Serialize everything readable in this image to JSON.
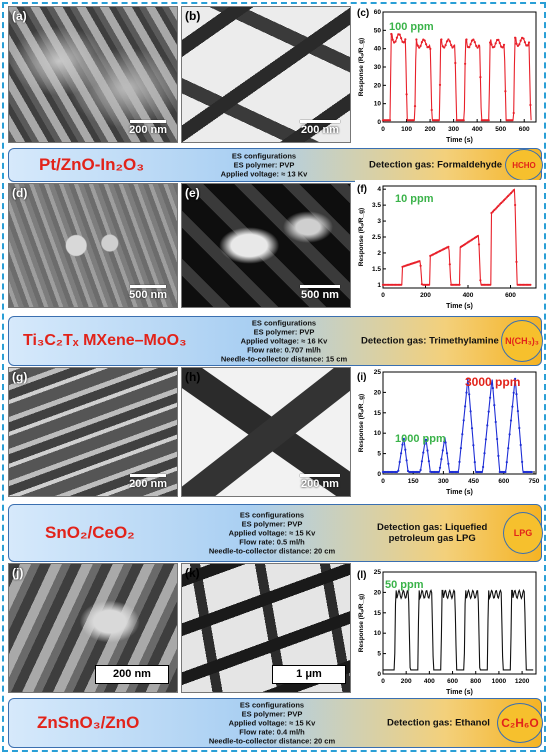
{
  "rows": [
    {
      "panels": {
        "sem": {
          "label": "(a)",
          "scale": "200 nm"
        },
        "tem": {
          "label": "(b)",
          "scale": "200 nm"
        },
        "plot": {
          "label": "(c)",
          "annotation": "100 ppm"
        }
      },
      "material": "Pt/ZnO-In₂O₃",
      "config": [
        "ES configurations",
        "ES polymer: PVP",
        "Applied voltage: ≈ 13 Kv"
      ],
      "gas": [
        "Detection gas: Formaldehyde"
      ],
      "badge": "HCHO"
    },
    {
      "panels": {
        "sem": {
          "label": "(d)",
          "scale": "500 nm"
        },
        "tem": {
          "label": "(e)",
          "scale": "500 nm"
        },
        "plot": {
          "label": "(f)",
          "annotation": "10 ppm"
        }
      },
      "material": "Ti₃C₂Tₓ MXene–MoO₃",
      "config": [
        "ES configurations",
        "ES polymer: PVP",
        "Applied voltage: ≈ 16 Kv",
        "Flow rate: 0.707 ml/h",
        "Needle-to-collector distance: 15 cm"
      ],
      "gas": [
        "Detection gas: Trimethylamine"
      ],
      "badge": "N(CH₃)₃"
    },
    {
      "panels": {
        "sem": {
          "label": "(g)",
          "scale": "200 nm"
        },
        "tem": {
          "label": "(h)",
          "scale": "200 nm"
        },
        "plot": {
          "label": "(i)",
          "annotation": "1000 ppm",
          "annotation2": "3000 ppm"
        }
      },
      "material": "SnO₂/CeO₂",
      "config": [
        "ES configurations",
        "ES polymer: PVP",
        "Applied voltage: ≈ 15 Kv",
        "Flow rate: 0.5 ml/h",
        "Needle-to-collector distance: 20 cm"
      ],
      "gas": [
        "Detection gas: Liquefied",
        "petroleum gas  LPG"
      ],
      "badge": "LPG"
    },
    {
      "panels": {
        "sem": {
          "label": "(j)",
          "scale": "200 nm"
        },
        "tem": {
          "label": "(k)",
          "scale": "1 μm"
        },
        "plot": {
          "label": "(l)",
          "annotation": "50 ppm"
        }
      },
      "material": "ZnSnO₃/ZnO",
      "config": [
        "ES configurations",
        "ES polymer: PVP",
        "Applied voltage: ≈ 15 Kv",
        "Flow rate: 0.4 ml/h",
        "Needle-to-collector distance: 20 cm"
      ],
      "gas": [
        "Detection gas: Ethanol"
      ],
      "badge": "C₂H₆O"
    }
  ],
  "chart_data": [
    {
      "type": "line",
      "panel": "(c)",
      "color": "#e8202a",
      "xlabel": "Time (s)",
      "ylabel": "Response (Rₐ/R_g)",
      "xlim": [
        0,
        650
      ],
      "ylim": [
        0,
        60
      ],
      "xticks": [
        0,
        100,
        200,
        300,
        400,
        500,
        600
      ],
      "yticks": [
        0,
        10,
        20,
        30,
        40,
        50,
        60
      ],
      "baseline": 1,
      "pulses": [
        {
          "start": 30,
          "end": 95,
          "peak": 48
        },
        {
          "start": 135,
          "end": 200,
          "peak": 45
        },
        {
          "start": 240,
          "end": 305,
          "peak": 45
        },
        {
          "start": 345,
          "end": 410,
          "peak": 45
        },
        {
          "start": 450,
          "end": 515,
          "peak": 45
        },
        {
          "start": 555,
          "end": 620,
          "peak": 46
        }
      ],
      "shape": "square"
    },
    {
      "type": "line",
      "panel": "(f)",
      "color": "#e8202a",
      "xlabel": "Time (s)",
      "ylabel": "Response (Rₐ/R_g)",
      "xlim": [
        0,
        720
      ],
      "ylim": [
        0.9,
        4.1
      ],
      "xticks": [
        0,
        200,
        400,
        600
      ],
      "yticks": [
        1.0,
        1.5,
        2.0,
        2.5,
        3.0,
        3.5,
        4.0
      ],
      "baseline": 1.0,
      "pulses": [
        {
          "start": 90,
          "end": 175,
          "peak": 1.75
        },
        {
          "start": 220,
          "end": 310,
          "peak": 2.2
        },
        {
          "start": 360,
          "end": 450,
          "peak": 2.55
        },
        {
          "start": 510,
          "end": 620,
          "peak": 4.0
        }
      ],
      "shape": "rise"
    },
    {
      "type": "line",
      "panel": "(i)",
      "color": "#1f2fd6",
      "xlabel": "Time (s)",
      "ylabel": "Response (Rₐ/R_g)",
      "xlim": [
        0,
        760
      ],
      "ylim": [
        0,
        25
      ],
      "xticks": [
        0,
        150,
        300,
        450,
        600,
        750
      ],
      "yticks": [
        0,
        5,
        10,
        15,
        20,
        25
      ],
      "baseline": 0.5,
      "pulses": [
        {
          "start": 75,
          "end": 125,
          "peak": 9
        },
        {
          "start": 185,
          "end": 235,
          "peak": 9
        },
        {
          "start": 280,
          "end": 330,
          "peak": 9
        },
        {
          "start": 375,
          "end": 460,
          "peak": 23.5
        },
        {
          "start": 495,
          "end": 580,
          "peak": 23.5
        },
        {
          "start": 610,
          "end": 695,
          "peak": 23.5
        }
      ],
      "shape": "spike"
    },
    {
      "type": "line",
      "panel": "(l)",
      "color": "#111111",
      "xlabel": "Time (s)",
      "ylabel": "Response (Rₐ/R_g)",
      "xlim": [
        0,
        1320
      ],
      "ylim": [
        0,
        25
      ],
      "xticks": [
        0,
        200,
        400,
        600,
        800,
        1000,
        1200
      ],
      "yticks": [
        0,
        5,
        10,
        15,
        20,
        25
      ],
      "baseline": 1,
      "pulses": [
        {
          "start": 100,
          "end": 220,
          "peak": 20.5
        },
        {
          "start": 300,
          "end": 420,
          "peak": 20.5
        },
        {
          "start": 500,
          "end": 620,
          "peak": 20.5
        },
        {
          "start": 700,
          "end": 820,
          "peak": 20.5
        },
        {
          "start": 900,
          "end": 1020,
          "peak": 20.5
        },
        {
          "start": 1100,
          "end": 1220,
          "peak": 20.5
        }
      ],
      "shape": "square"
    }
  ]
}
